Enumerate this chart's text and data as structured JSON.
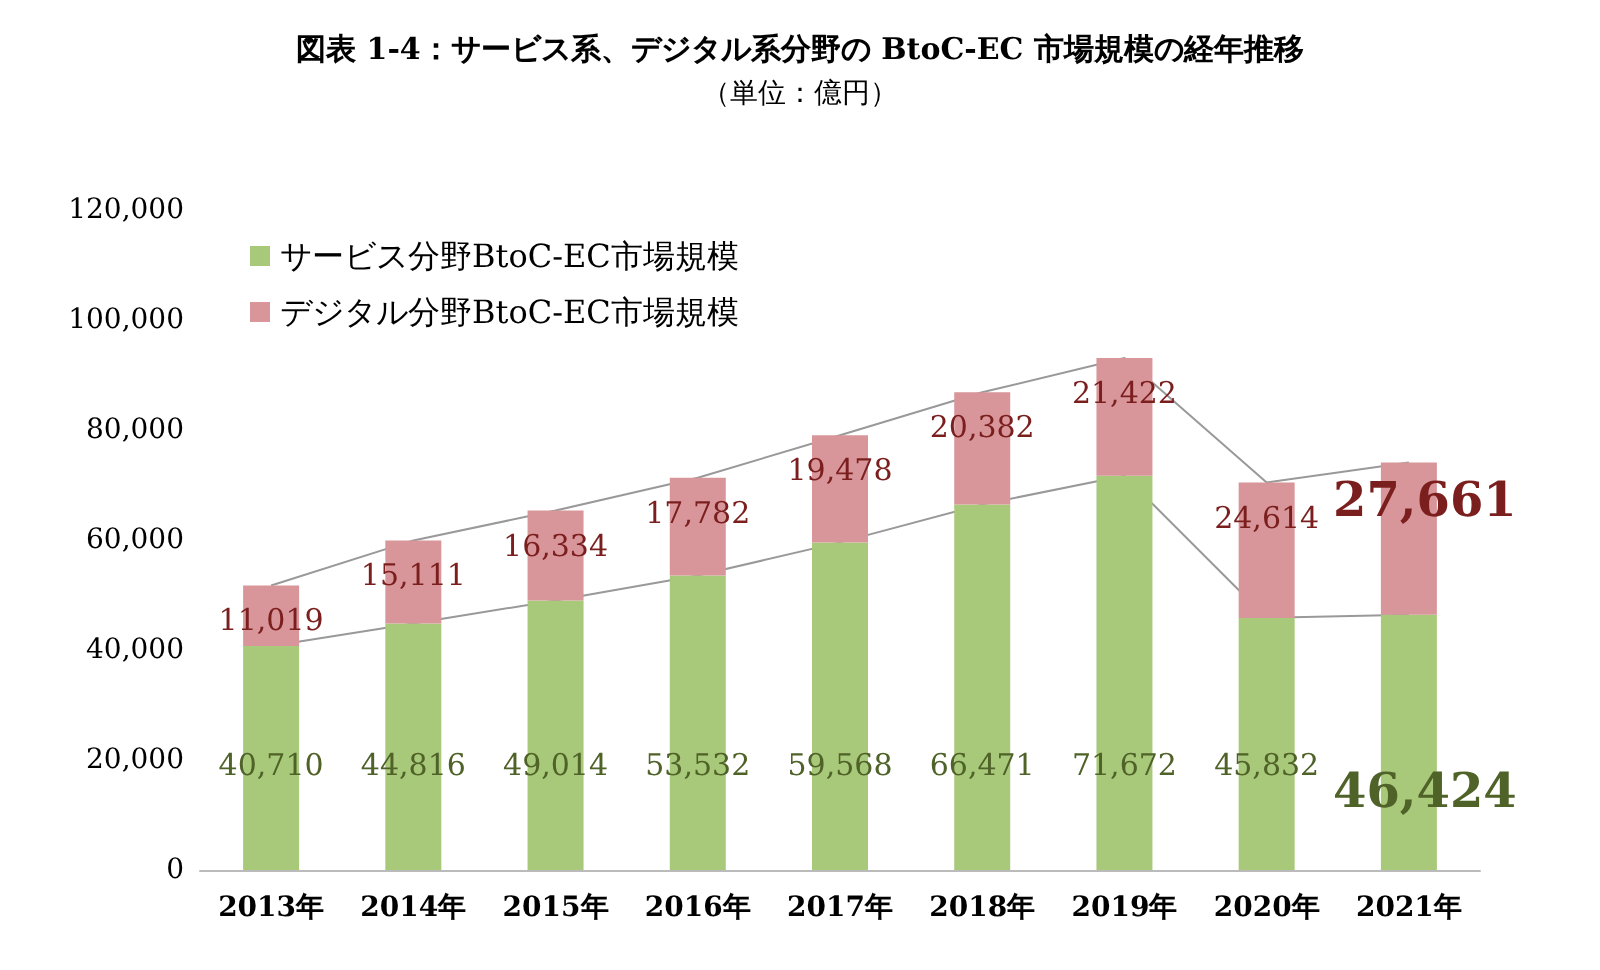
{
  "chart_data": {
    "type": "bar",
    "title": "図表 1-4：サービス系、デジタル系分野の BtoC-EC 市場規模の経年推移",
    "subtitle": "（単位：億円）",
    "categories": [
      "2013年",
      "2014年",
      "2015年",
      "2016年",
      "2017年",
      "2018年",
      "2019年",
      "2020年",
      "2021年"
    ],
    "series": [
      {
        "name": "サービス分野BtoC-EC市場規模",
        "color": "#a9c97a",
        "values": [
          40710,
          44816,
          49014,
          53532,
          59568,
          66471,
          71672,
          45832,
          46424
        ],
        "value_labels": [
          "40,710",
          "44,816",
          "49,014",
          "53,532",
          "59,568",
          "66,471",
          "71,672",
          "45,832",
          "46,424"
        ]
      },
      {
        "name": "デジタル分野BtoC-EC市場規模",
        "color": "#d9969a",
        "values": [
          11019,
          15111,
          16334,
          17782,
          19478,
          20382,
          21422,
          24614,
          27661
        ],
        "value_labels": [
          "11,019",
          "15,111",
          "16,334",
          "17,782",
          "19,478",
          "20,382",
          "21,422",
          "24,614",
          "27,661"
        ]
      }
    ],
    "stacked": true,
    "ylim": [
      0,
      120000
    ],
    "yticks": [
      0,
      {
        "value": 20000,
        "label": "20,000"
      },
      {
        "value": 40000,
        "label": "40,000"
      },
      {
        "value": 60000,
        "label": "60,000"
      },
      {
        "value": 80000,
        "label": "80,000"
      },
      {
        "value": 100000,
        "label": "100,000"
      },
      {
        "value": 120000,
        "label": "120,000"
      }
    ],
    "grid": false,
    "legend": "top left"
  }
}
